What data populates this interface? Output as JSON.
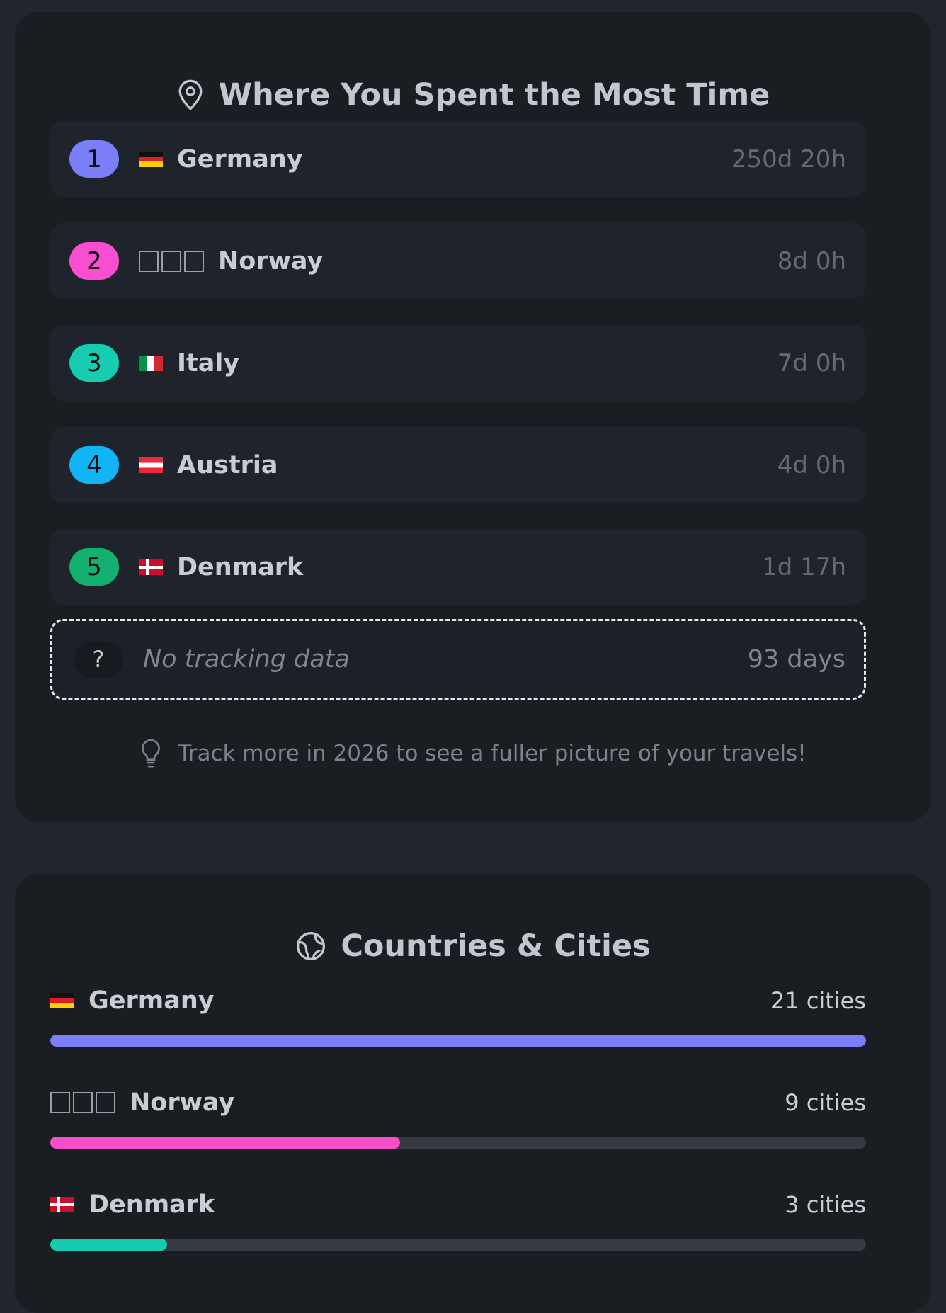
{
  "most_time": {
    "title": "Where You Spent the Most Time",
    "rows": [
      {
        "rank": 1,
        "country": "Germany",
        "time": "250d 20h",
        "color": "#7b7ff7"
      },
      {
        "rank": 2,
        "country": "Norway",
        "time": "8d 0h",
        "color": "#f74fcf"
      },
      {
        "rank": 3,
        "country": "Italy",
        "time": "7d 0h",
        "color": "#16cdb1"
      },
      {
        "rank": 4,
        "country": "Austria",
        "time": "4d 0h",
        "color": "#11b5f5"
      },
      {
        "rank": 5,
        "country": "Denmark",
        "time": "1d 17h",
        "color": "#13b06f"
      }
    ],
    "no_data": {
      "icon": "?",
      "label": "No tracking data",
      "value": "93 days"
    },
    "tip": "Track more in 2026 to see a fuller picture of your travels!"
  },
  "countries_cities": {
    "title": "Countries & Cities",
    "items": [
      {
        "country": "Germany",
        "cities": 21,
        "label": "21 cities",
        "color": "#7c7ff5"
      },
      {
        "country": "Norway",
        "cities": 9,
        "label": "9 cities",
        "color": "#f54fc8"
      },
      {
        "country": "Denmark",
        "cities": 3,
        "label": "3 cities",
        "color": "#16ccb0"
      }
    ]
  }
}
